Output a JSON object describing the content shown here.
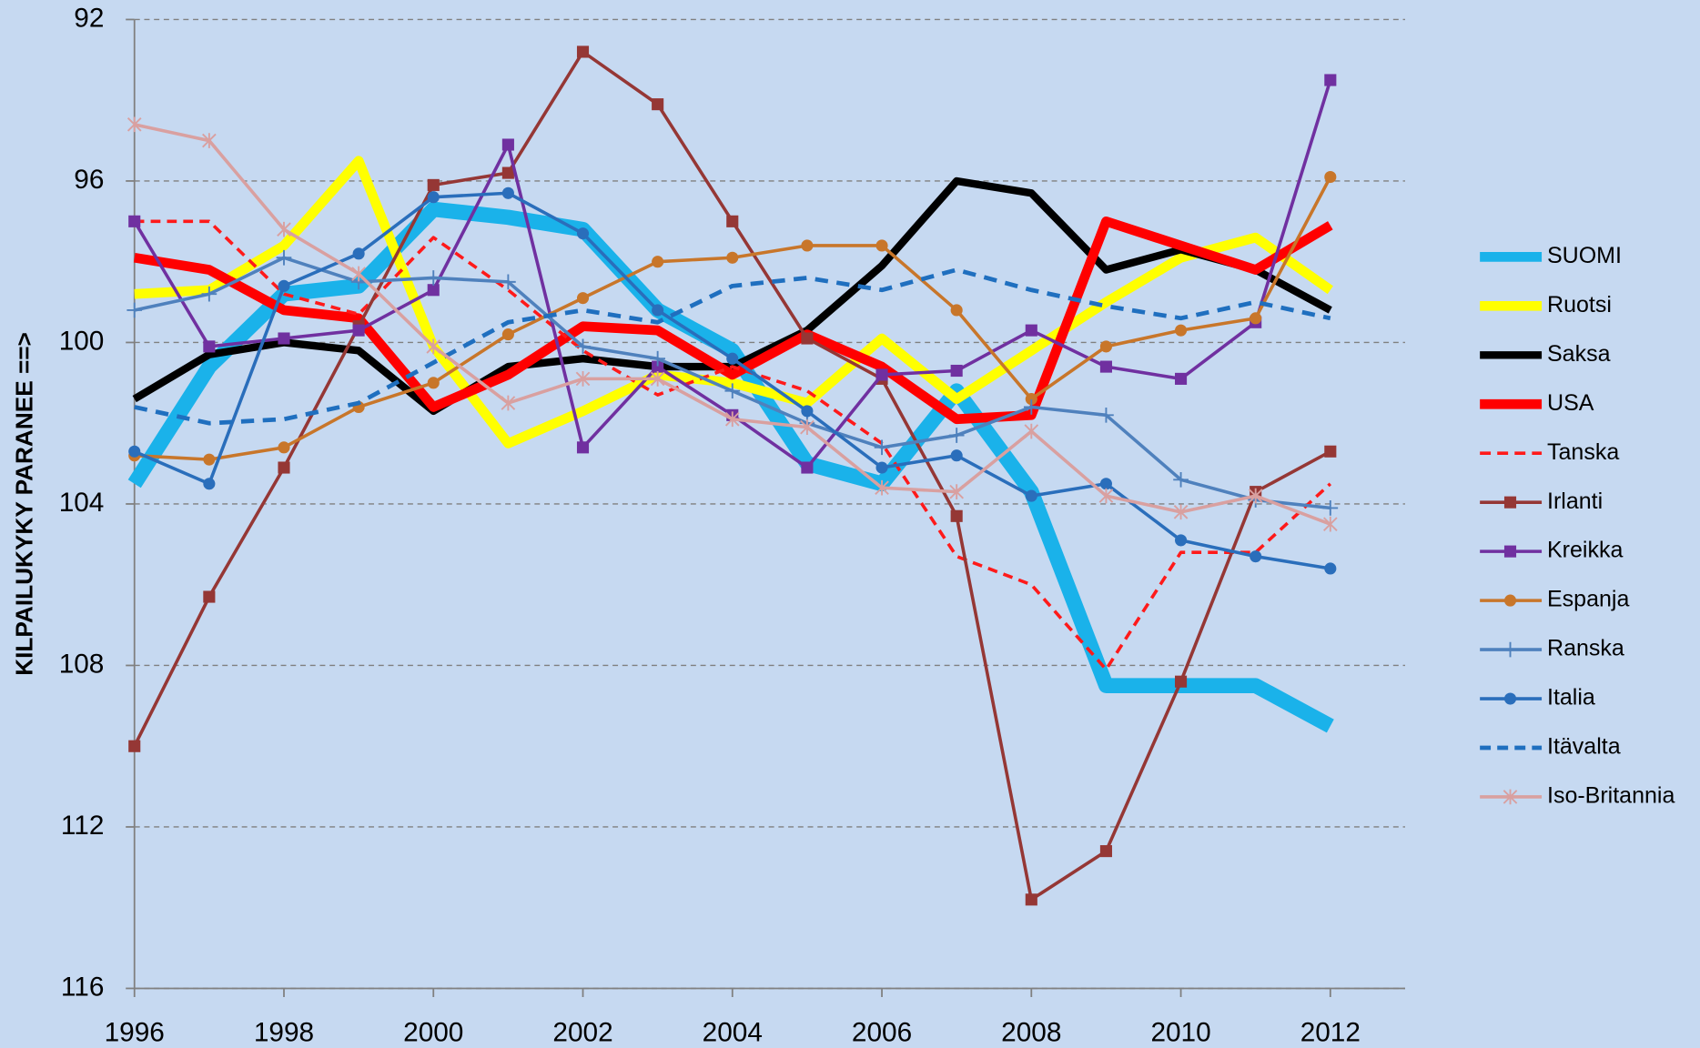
{
  "chart_data": {
    "type": "line",
    "ylabel": "KILPAILUKYKY PARANEE ==>",
    "y_inverted": true,
    "grid": true,
    "legend": "right",
    "x": [
      1996,
      1997,
      1998,
      1999,
      2000,
      2001,
      2002,
      2003,
      2004,
      2005,
      2006,
      2007,
      2008,
      2009,
      2010,
      2011,
      2012
    ],
    "xlim": [
      1996,
      2013
    ],
    "xticks": [
      1996,
      1998,
      2000,
      2002,
      2004,
      2006,
      2008,
      2010,
      2012
    ],
    "ylim": [
      116,
      92
    ],
    "yticks": [
      92,
      96,
      100,
      104,
      108,
      112,
      116
    ],
    "series": [
      {
        "name": "SUOMI",
        "color": "#1ab2ea",
        "line_width": 14,
        "values": [
          103.5,
          100.6,
          98.8,
          98.6,
          96.7,
          96.9,
          97.2,
          99.2,
          100.2,
          103.0,
          103.5,
          101.2,
          103.7,
          108.5,
          108.5,
          108.5,
          109.5
        ]
      },
      {
        "name": "Ruotsi",
        "color": "#ffff00",
        "line_width": 9,
        "values": [
          98.8,
          98.7,
          97.6,
          95.5,
          100.1,
          102.5,
          101.7,
          100.8,
          101.0,
          101.5,
          99.9,
          101.4,
          100.2,
          99.0,
          97.9,
          97.4,
          98.7
        ]
      },
      {
        "name": "Saksa",
        "color": "#000000",
        "line_width": 7,
        "values": [
          101.4,
          100.3,
          100.0,
          100.2,
          101.7,
          100.6,
          100.4,
          100.6,
          100.6,
          99.7,
          98.1,
          96.0,
          96.3,
          98.2,
          97.7,
          98.2,
          99.2
        ]
      },
      {
        "name": "USA",
        "color": "#ff0000",
        "line_width": 9,
        "values": [
          97.9,
          98.2,
          99.2,
          99.4,
          101.6,
          100.8,
          99.6,
          99.7,
          100.8,
          99.8,
          100.6,
          101.9,
          101.8,
          97.0,
          97.6,
          98.2,
          97.1
        ]
      },
      {
        "name": "Tanska",
        "color": "#ff1a1a",
        "line_width": 3,
        "dash": true,
        "values": [
          97.0,
          97.0,
          98.8,
          99.3,
          97.4,
          98.7,
          100.2,
          101.3,
          100.6,
          101.2,
          102.5,
          105.3,
          106.0,
          108.1,
          105.2,
          105.2,
          103.5
        ]
      },
      {
        "name": "Irlanti",
        "color": "#953735",
        "line_width": 3,
        "marker": "square",
        "values": [
          110.0,
          106.3,
          103.1,
          99.6,
          96.1,
          95.8,
          92.8,
          94.1,
          97.0,
          99.9,
          100.9,
          104.3,
          113.8,
          112.6,
          108.4,
          103.7,
          102.7
        ]
      },
      {
        "name": "Kreikka",
        "color": "#7030a0",
        "line_width": 3,
        "marker": "square",
        "values": [
          97.0,
          100.1,
          99.9,
          99.7,
          98.7,
          95.1,
          102.6,
          100.6,
          101.8,
          103.1,
          100.8,
          100.7,
          99.7,
          100.6,
          100.9,
          99.5,
          93.5
        ]
      },
      {
        "name": "Espanja",
        "color": "#c8762a",
        "line_width": 3,
        "marker": "circle",
        "values": [
          102.8,
          102.9,
          102.6,
          101.6,
          101.0,
          99.8,
          98.9,
          98.0,
          97.9,
          97.6,
          97.6,
          99.2,
          101.4,
          100.1,
          99.7,
          99.4,
          95.9
        ]
      },
      {
        "name": "Ranska",
        "color": "#4f81bd",
        "line_width": 3,
        "marker": "plus",
        "values": [
          99.2,
          98.8,
          97.9,
          98.5,
          98.4,
          98.5,
          100.1,
          100.4,
          101.2,
          102.0,
          102.6,
          102.3,
          101.6,
          101.8,
          103.4,
          103.9,
          104.1
        ]
      },
      {
        "name": "Italia",
        "color": "#2a6ebb",
        "line_width": 3,
        "marker": "circle",
        "values": [
          102.7,
          103.5,
          98.6,
          97.8,
          96.4,
          96.3,
          97.3,
          99.2,
          100.4,
          101.7,
          103.1,
          102.8,
          103.8,
          103.5,
          104.9,
          105.3,
          105.6
        ]
      },
      {
        "name": "Itävalta",
        "color": "#1f6fbf",
        "line_width": 4,
        "dash": true,
        "values": [
          101.6,
          102.0,
          101.9,
          101.5,
          100.5,
          99.5,
          99.2,
          99.5,
          98.6,
          98.4,
          98.7,
          98.2,
          98.7,
          99.1,
          99.4,
          99.0,
          99.4
        ]
      },
      {
        "name": "Iso-Britannia",
        "color": "#d9a0a0",
        "line_width": 3,
        "marker": "star",
        "values": [
          94.6,
          95.0,
          97.2,
          98.3,
          100.1,
          101.5,
          100.9,
          100.9,
          101.9,
          102.1,
          103.6,
          103.7,
          102.2,
          103.8,
          104.2,
          103.8,
          104.5
        ]
      }
    ]
  }
}
